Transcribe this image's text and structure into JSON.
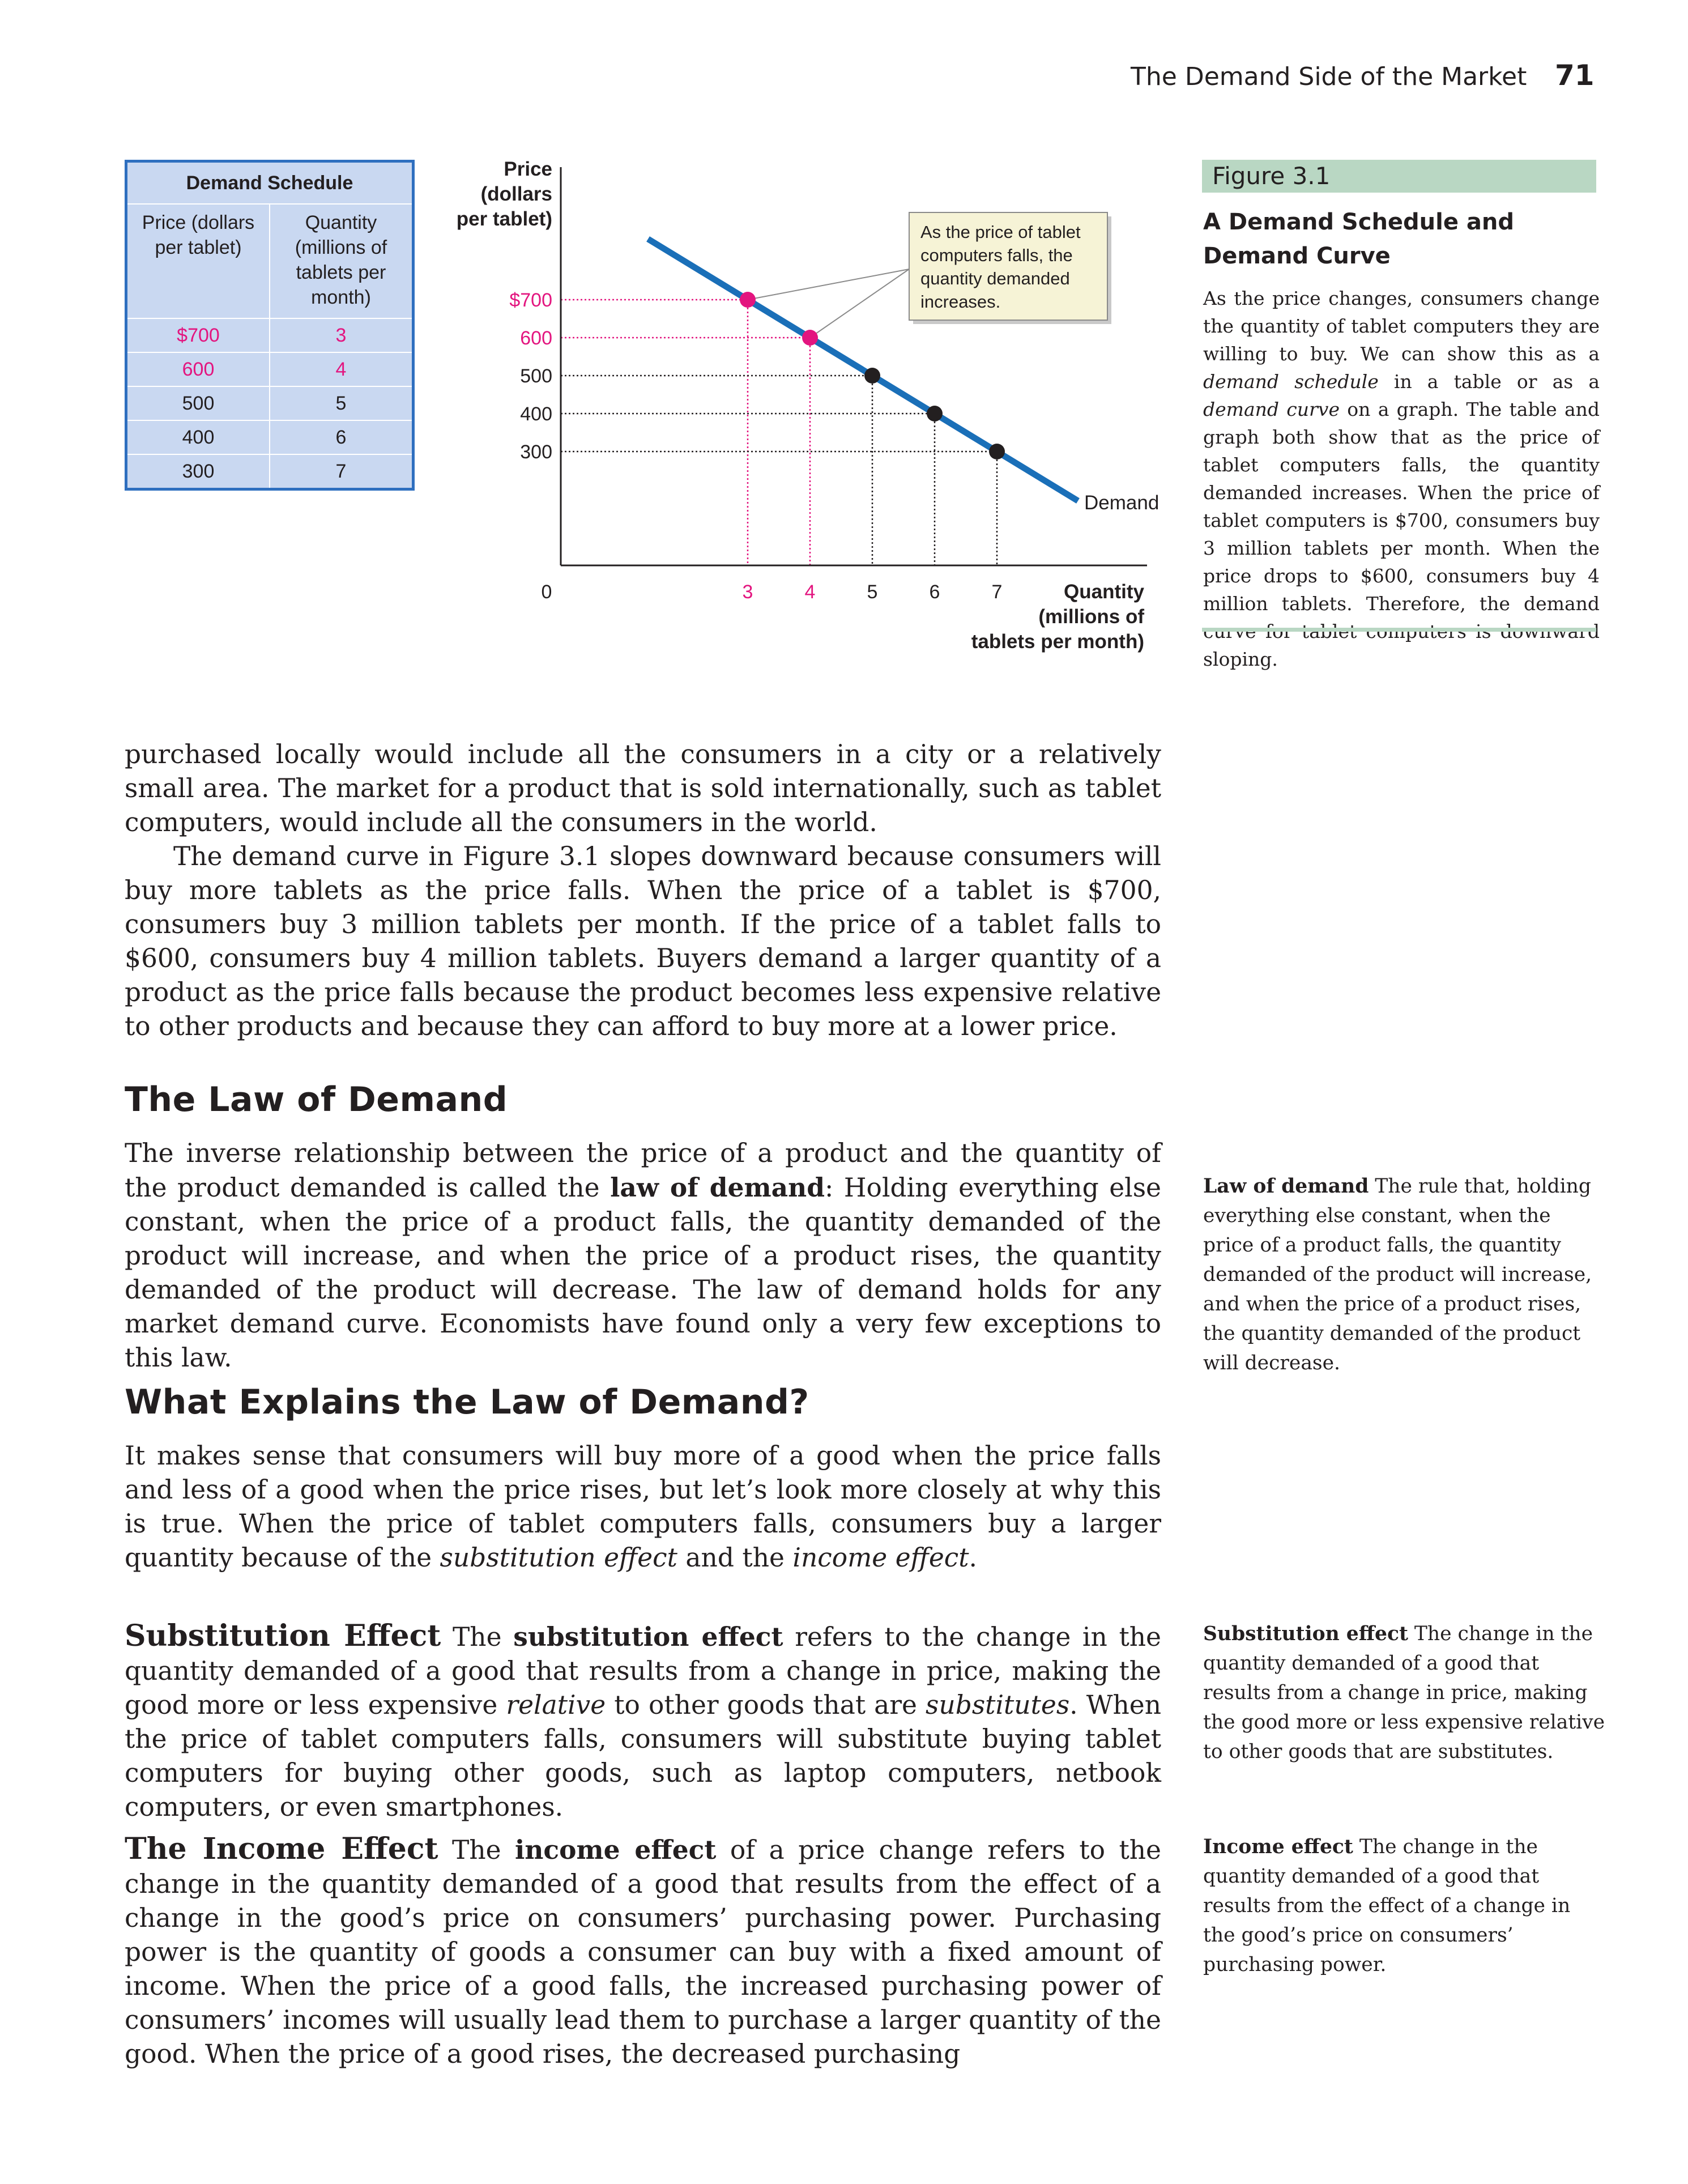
{
  "running_head": {
    "title": "The Demand Side of the Market",
    "page_number": "71"
  },
  "schedule": {
    "title": "Demand Schedule",
    "col_price": "Price (dollars per tablet)",
    "col_qty": "Quantity (millions of tablets per month)",
    "rows": [
      {
        "price": "$700",
        "qty": "3"
      },
      {
        "price": "600",
        "qty": "4"
      },
      {
        "price": "500",
        "qty": "5"
      },
      {
        "price": "400",
        "qty": "6"
      },
      {
        "price": "300",
        "qty": "7"
      }
    ]
  },
  "chart_data": {
    "type": "line",
    "ylabel": "Price (dollars per tablet)",
    "xlabel": "Quantity (millions of tablets per month)",
    "y_tick_labels": [
      "$700",
      "600",
      "500",
      "400",
      "300"
    ],
    "x_tick_labels": [
      "0",
      "3",
      "4",
      "5",
      "6",
      "7"
    ],
    "series": [
      {
        "name": "Demand",
        "x": [
          3,
          4,
          5,
          6,
          7
        ],
        "y": [
          700,
          600,
          500,
          400,
          300
        ]
      }
    ],
    "annotation": "As the price of tablet computers falls, the quantity demanded increases.",
    "highlight_color": "#e3157f",
    "curve_color": "#1a6fb8"
  },
  "figure": {
    "label": "Figure 3.1",
    "title": "A Demand Schedule and Demand Curve",
    "caption_1": "As the price changes, consumers change the quantity of tablet computers they are willing to buy. We can show this as a ",
    "caption_em1": "demand schedule",
    "caption_2": " in a table or as a ",
    "caption_em2": "demand curve",
    "caption_3": " on a graph. The table and graph both show that as the price of tablet computers falls, the quantity demanded increases. When the price of tablet computers is $700, consumers buy 3 million tablets per month. When the price drops to $600, consumers buy 4 million tablets. Therefore, the demand curve for tablet computers is downward sloping."
  },
  "body": {
    "p1": "purchased locally would include all the consumers in a city or a relatively small area. The market for a product that is sold internationally, such as tablet computers, would include all the consumers in the world.",
    "p2": "The demand curve in Figure 3.1 slopes downward because consumers will buy more tablets as the price falls. When the price of a tablet is $700, consumers buy 3 million tablets per month. If the price of a tablet falls to $600, consumers buy 4 million tablets. Buyers demand a larger quantity of a product as the price falls because the product becomes less expensive relative to other products and because they can afford to buy more at a lower price.",
    "h_law": "The Law of Demand",
    "law_1": "The inverse relationship between the price of a product and the quantity of the product demanded is called the ",
    "law_bold": "law of demand",
    "law_2": ": Holding everything else constant, when the price of a product falls, the quantity demanded of the product will increase, and when the price of a product rises, the quantity demanded of the product will decrease. The law of demand holds for any market demand curve. Economists have found only a very few exceptions to this law.",
    "h_explains": "What Explains the Law of Demand?",
    "exp_1": "It makes sense that consumers will buy more of a good when the price falls and less of a good when the price rises, but let’s look more closely at why this is true. When the price of tablet computers falls, consumers buy a larger quantity because of the ",
    "exp_em1": "substitution effect",
    "exp_2": " and the ",
    "exp_em2": "income effect",
    "exp_3": ".",
    "sub_runin": "Substitution Effect",
    "sub_1": " The ",
    "sub_bold": "substitution effect",
    "sub_2": " refers to the change in the quantity demanded of a good that results from a change in price, making the good more or less expensive ",
    "sub_em1": "relative",
    "sub_3": " to other goods that are ",
    "sub_em2": "substitutes",
    "sub_4": ". When the price of tablet computers falls, consumers will substitute buying tablet computers for buying other goods, such as laptop computers, netbook computers, or even smartphones.",
    "inc_runin": "The Income Effect",
    "inc_1": " The ",
    "inc_bold": "income effect",
    "inc_2": " of a price change refers to the change in the quantity demanded of a good that results from the effect of a change in the good’s price on consumers’ purchasing power. Purchasing power is the quantity of goods a consumer can buy with a fixed amount of income. When the price of a good falls, the increased purchasing power of consumers’ incomes will usually lead them to purchase a larger quantity of the good. When the price of a good rises, the decreased purchasing"
  },
  "glossary": {
    "law_term": "Law of demand",
    "law_def": " The rule that, holding everything else constant, when the price of a product falls, the quantity demanded of the product will increase, and when the price of a product rises, the quantity demanded of the product will decrease.",
    "sub_term": "Substitution effect",
    "sub_def": " The change in the quantity demanded of a good that results from a change in price, making the good more or less expensive relative to other goods that are substitutes.",
    "inc_term": "Income effect",
    "inc_def": " The change in the quantity demanded of a good that results from the effect of a change in the good’s price on consumers’ purchasing power."
  }
}
